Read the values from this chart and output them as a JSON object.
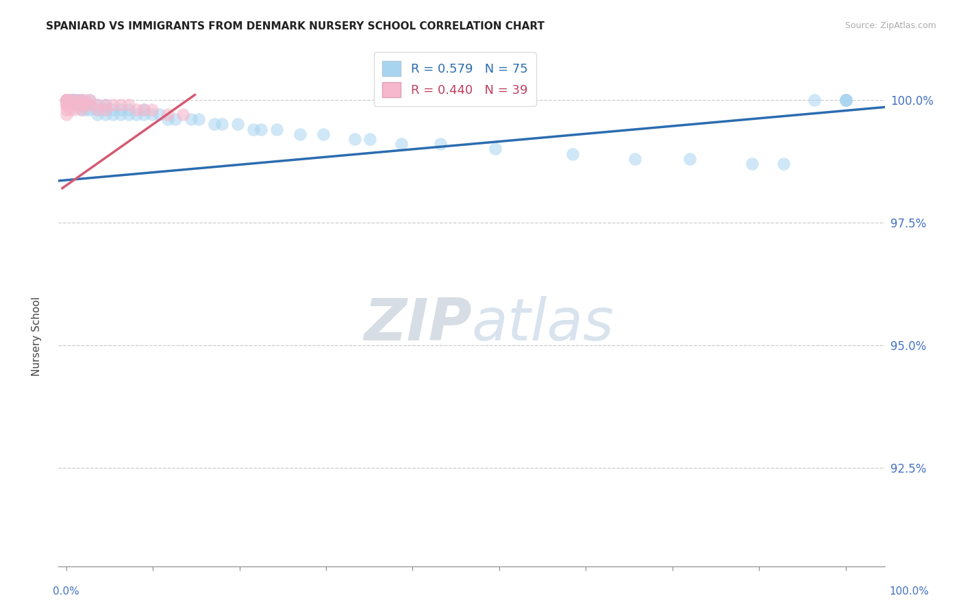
{
  "title": "SPANIARD VS IMMIGRANTS FROM DENMARK NURSERY SCHOOL CORRELATION CHART",
  "source": "Source: ZipAtlas.com",
  "ylabel": "Nursery School",
  "ytick_labels": [
    "92.5%",
    "95.0%",
    "97.5%",
    "100.0%"
  ],
  "ytick_values": [
    0.925,
    0.95,
    0.975,
    1.0
  ],
  "ymin": 0.905,
  "ymax": 1.012,
  "xmin": -0.01,
  "xmax": 1.05,
  "legend_blue_label": "R = 0.579   N = 75",
  "legend_pink_label": "R = 0.440   N = 39",
  "blue_color": "#a8d4f0",
  "pink_color": "#f5b8cc",
  "blue_line_color": "#2b6cb0",
  "pink_line_color": "#d45a72",
  "background_color": "#ffffff",
  "tick_color": "#4472c4",
  "blue_line_x0": -0.01,
  "blue_line_x1": 1.05,
  "blue_line_y0": 0.9835,
  "blue_line_y1": 0.9985,
  "pink_line_x0": -0.005,
  "pink_line_x1": 0.165,
  "pink_line_y0": 0.982,
  "pink_line_y1": 1.001,
  "blue_x": [
    0.0,
    0.0,
    0.0,
    0.0,
    0.0,
    0.0,
    0.0,
    0.0,
    0.0,
    0.0,
    0.0,
    0.0,
    0.005,
    0.005,
    0.005,
    0.008,
    0.008,
    0.01,
    0.01,
    0.01,
    0.015,
    0.015,
    0.02,
    0.02,
    0.02,
    0.02,
    0.025,
    0.025,
    0.03,
    0.03,
    0.03,
    0.04,
    0.04,
    0.04,
    0.05,
    0.05,
    0.05,
    0.06,
    0.06,
    0.07,
    0.07,
    0.08,
    0.08,
    0.09,
    0.1,
    0.1,
    0.11,
    0.12,
    0.13,
    0.14,
    0.16,
    0.17,
    0.19,
    0.2,
    0.22,
    0.24,
    0.25,
    0.27,
    0.3,
    0.33,
    0.37,
    0.39,
    0.43,
    0.48,
    0.55,
    0.65,
    0.73,
    0.8,
    0.88,
    0.92,
    0.96,
    1.0,
    1.0,
    1.0,
    1.0
  ],
  "blue_y": [
    1.0,
    1.0,
    1.0,
    1.0,
    1.0,
    1.0,
    1.0,
    1.0,
    1.0,
    1.0,
    1.0,
    1.0,
    1.0,
    1.0,
    1.0,
    1.0,
    1.0,
    1.0,
    1.0,
    1.0,
    1.0,
    0.999,
    1.0,
    1.0,
    0.999,
    0.998,
    0.999,
    0.998,
    1.0,
    0.999,
    0.998,
    0.999,
    0.998,
    0.997,
    0.999,
    0.998,
    0.997,
    0.998,
    0.997,
    0.998,
    0.997,
    0.998,
    0.997,
    0.997,
    0.998,
    0.997,
    0.997,
    0.997,
    0.996,
    0.996,
    0.996,
    0.996,
    0.995,
    0.995,
    0.995,
    0.994,
    0.994,
    0.994,
    0.993,
    0.993,
    0.992,
    0.992,
    0.991,
    0.991,
    0.99,
    0.989,
    0.988,
    0.988,
    0.987,
    0.987,
    1.0,
    1.0,
    1.0,
    1.0,
    1.0
  ],
  "pink_x": [
    0.0,
    0.0,
    0.0,
    0.0,
    0.0,
    0.0,
    0.0,
    0.0,
    0.0,
    0.0,
    0.0,
    0.005,
    0.005,
    0.005,
    0.008,
    0.01,
    0.01,
    0.01,
    0.015,
    0.015,
    0.02,
    0.02,
    0.02,
    0.025,
    0.025,
    0.03,
    0.03,
    0.04,
    0.04,
    0.05,
    0.05,
    0.06,
    0.07,
    0.08,
    0.09,
    0.1,
    0.11,
    0.13,
    0.15
  ],
  "pink_y": [
    1.0,
    1.0,
    1.0,
    1.0,
    1.0,
    1.0,
    0.999,
    0.999,
    0.999,
    0.998,
    0.997,
    1.0,
    0.999,
    0.998,
    0.999,
    1.0,
    0.999,
    0.998,
    1.0,
    0.999,
    1.0,
    0.999,
    0.998,
    1.0,
    0.999,
    1.0,
    0.999,
    0.999,
    0.998,
    0.999,
    0.998,
    0.999,
    0.999,
    0.999,
    0.998,
    0.998,
    0.998,
    0.997,
    0.997
  ]
}
